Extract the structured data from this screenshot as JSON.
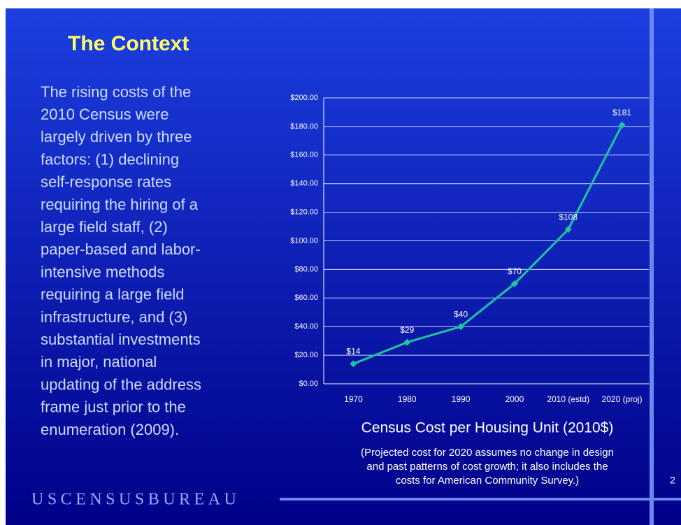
{
  "title": "The Context",
  "body": [
    "The rising costs of the",
    "2010 Census were",
    "largely driven by three",
    "factors: (1) declining",
    "self-response rates",
    "requiring the hiring of a",
    "large field staff, (2)",
    "paper-based and labor-",
    "intensive methods",
    "requiring a large field",
    "infrastructure, and (3)",
    "substantial investments",
    "in major, national",
    "updating of the address",
    "frame just prior to the",
    "enumeration (2009)."
  ],
  "logo": "USCENSUSBUREAU",
  "page_number": "2",
  "chart_data": {
    "type": "line",
    "title": "Census Cost per Housing Unit (2010$)",
    "note": [
      "(Projected cost for 2020 assumes no change in design",
      "and past patterns of cost growth; it also includes the",
      "costs for American Community Survey.)"
    ],
    "categories": [
      "1970",
      "1980",
      "1990",
      "2000",
      "2010 (estd)",
      "2020 (proj)"
    ],
    "values": [
      14,
      29,
      40,
      70,
      108,
      181
    ],
    "value_labels": [
      "$14",
      "$29",
      "$40",
      "$70",
      "$108",
      "$181"
    ],
    "color": "#21c2a0",
    "ylim": [
      0,
      200
    ],
    "yticks": [
      {
        "value": 0,
        "label": "$0.00"
      },
      {
        "value": 20,
        "label": "$20.00"
      },
      {
        "value": 40,
        "label": "$40.00"
      },
      {
        "value": 60,
        "label": "$60.00"
      },
      {
        "value": 80,
        "label": "$80.00"
      },
      {
        "value": 100,
        "label": "$100.00"
      },
      {
        "value": 120,
        "label": "$120.00"
      },
      {
        "value": 140,
        "label": "$140.00"
      },
      {
        "value": 160,
        "label": "$160.00"
      },
      {
        "value": 180,
        "label": "$180.00"
      },
      {
        "value": 200,
        "label": "$200.00"
      }
    ],
    "grid": true
  }
}
